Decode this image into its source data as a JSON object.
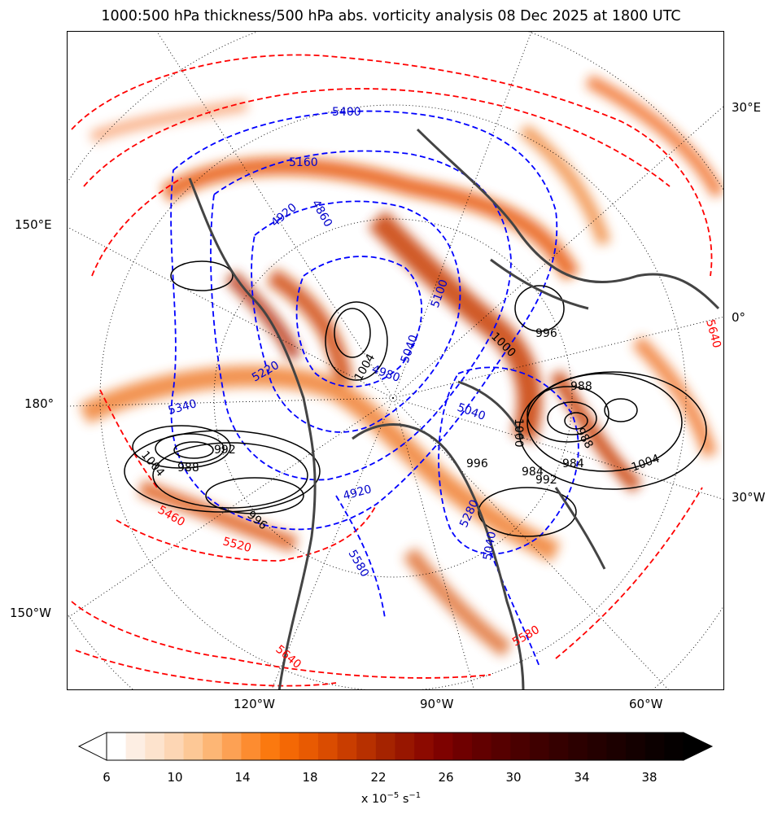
{
  "title": "1000:500 hPa thickness/500 hPa abs. vorticity analysis 08 Dec 2025 at 1800 UTC",
  "map": {
    "bottom_lon_labels": [
      "120°W",
      "90°W",
      "60°W"
    ],
    "left_lat_labels": [
      "150°E",
      "180°",
      "150°W"
    ],
    "right_lat_labels": [
      "30°E",
      "0°",
      "30°W"
    ],
    "thickness_labels_blue": [
      "5400",
      "5160",
      "4920",
      "4860",
      "4980",
      "5040",
      "5040",
      "5100",
      "5220",
      "5340",
      "4920",
      "5280",
      "5580",
      "5040"
    ],
    "thickness_labels_red": [
      "5460",
      "5520",
      "5640",
      "5580",
      "5640"
    ],
    "mslp_labels": [
      "1004",
      "1004",
      "992",
      "988",
      "996",
      "1000",
      "996",
      "988",
      "984",
      "992",
      "1004",
      "988",
      "1000",
      "996",
      "984"
    ]
  },
  "colorbar": {
    "tick_labels": [
      "6",
      "10",
      "14",
      "18",
      "22",
      "26",
      "30",
      "34",
      "38"
    ],
    "units_prefix": "x 10",
    "units_exp": "−5",
    "units_suffix": " s",
    "units_exp2": "−1",
    "colors": [
      "#ffffff",
      "#fdeee3",
      "#fde3cd",
      "#fdd6b4",
      "#fdc896",
      "#fdb675",
      "#fda154",
      "#fd8c30",
      "#fb790f",
      "#f46805",
      "#e85a02",
      "#da4c01",
      "#c93d00",
      "#b73000",
      "#a52300",
      "#981600",
      "#8c0a00",
      "#7e0200",
      "#6f0000",
      "#620000",
      "#560000",
      "#4a0000",
      "#3f0000",
      "#350000",
      "#2c0000",
      "#240000",
      "#1c0000",
      "#140000",
      "#0c0000",
      "#050000"
    ]
  }
}
